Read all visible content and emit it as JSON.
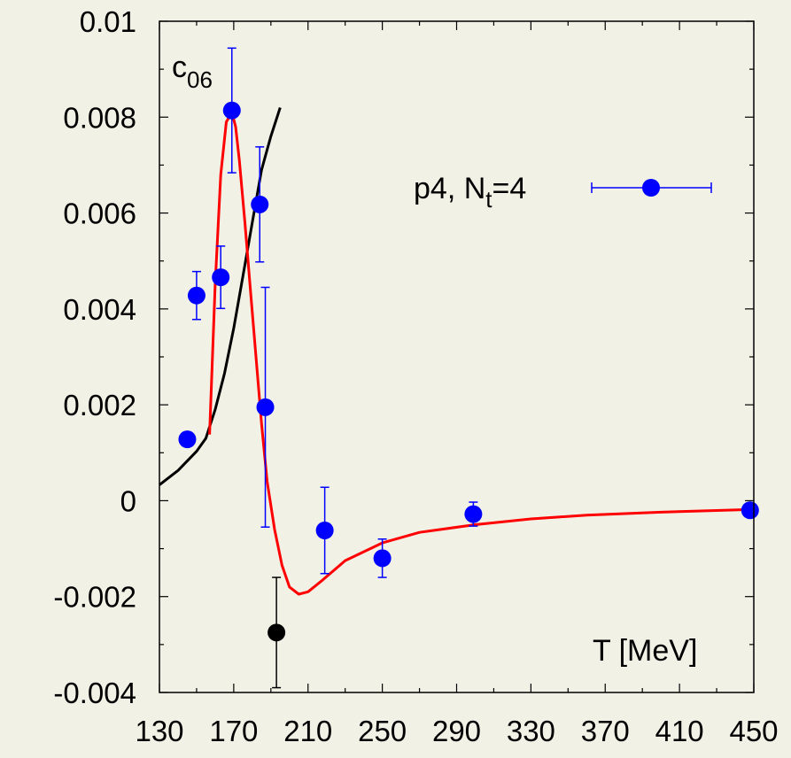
{
  "chart_data": {
    "type": "scatter",
    "xlabel": "T [MeV]",
    "xlim": [
      130,
      450
    ],
    "ylim": [
      -0.004,
      0.01
    ],
    "x_ticks": [
      "130",
      "170",
      "210",
      "250",
      "290",
      "330",
      "370",
      "410",
      "450"
    ],
    "y_ticks": [
      "-0.004",
      "-0.002",
      "0",
      "0.002",
      "0.004",
      "0.006",
      "0.008",
      "0.01"
    ],
    "panel_label": {
      "main": "c",
      "sub": "06"
    },
    "legend": {
      "prefix": "p4, N",
      "sub": "t",
      "suffix": "=4",
      "placement": "upper-right"
    },
    "series": [
      {
        "name": "p4, Nt=4",
        "color": "#0000ff",
        "points": [
          {
            "x": 145,
            "y": 0.00128,
            "err": 0
          },
          {
            "x": 150,
            "y": 0.00428,
            "err": 0.0005
          },
          {
            "x": 163,
            "y": 0.00466,
            "err": 0.00065
          },
          {
            "x": 169,
            "y": 0.00814,
            "err": 0.0013
          },
          {
            "x": 184,
            "y": 0.00618,
            "err": 0.0012
          },
          {
            "x": 187,
            "y": 0.00195,
            "err": 0.0025
          },
          {
            "x": 219,
            "y": -0.00062,
            "err": 0.0009
          },
          {
            "x": 250,
            "y": -0.0012,
            "err": 0.0004
          },
          {
            "x": 299,
            "y": -0.00028,
            "err": 0.00025
          },
          {
            "x": 448,
            "y": -0.0002,
            "err": 0
          }
        ]
      },
      {
        "name": "",
        "color": "#000000",
        "points": [
          {
            "x": 193,
            "y": -0.00275,
            "err": 0.00115
          }
        ]
      }
    ],
    "curves": [
      {
        "color": "#000000",
        "points": [
          [
            130,
            0.00033
          ],
          [
            140,
            0.00063
          ],
          [
            150,
            0.00103
          ],
          [
            155,
            0.0013
          ],
          [
            160,
            0.0019
          ],
          [
            165,
            0.00265
          ],
          [
            170,
            0.0036
          ],
          [
            175,
            0.0047
          ],
          [
            180,
            0.0058
          ],
          [
            185,
            0.0069
          ],
          [
            190,
            0.0076
          ],
          [
            195,
            0.0082
          ]
        ]
      },
      {
        "color": "#ff0000",
        "points": [
          [
            157,
            0.00138
          ],
          [
            160,
            0.0045
          ],
          [
            163,
            0.0068
          ],
          [
            166,
            0.0079
          ],
          [
            169,
            0.0081
          ],
          [
            171,
            0.0078
          ],
          [
            173,
            0.0071
          ],
          [
            176,
            0.0058
          ],
          [
            179,
            0.0044
          ],
          [
            182,
            0.003
          ],
          [
            185,
            0.0016
          ],
          [
            188,
            0.0004
          ],
          [
            192,
            -0.0006
          ],
          [
            196,
            -0.00135
          ],
          [
            200,
            -0.0018
          ],
          [
            205,
            -0.00195
          ],
          [
            210,
            -0.0019
          ],
          [
            218,
            -0.00165
          ],
          [
            230,
            -0.00125
          ],
          [
            250,
            -0.00088
          ],
          [
            270,
            -0.00066
          ],
          [
            300,
            -0.0005
          ],
          [
            330,
            -0.00038
          ],
          [
            360,
            -0.0003
          ],
          [
            400,
            -0.00024
          ],
          [
            450,
            -0.00018
          ]
        ]
      }
    ]
  }
}
